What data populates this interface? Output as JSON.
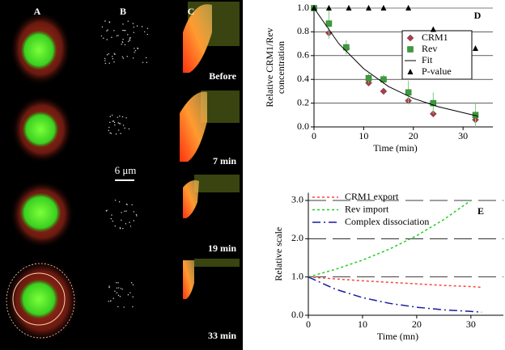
{
  "image_panels": {
    "columns": [
      "A",
      "B",
      "C"
    ],
    "times": [
      "Before",
      "7 min",
      "19 min",
      "33 min"
    ],
    "scale_bar": "6 μm"
  },
  "chart_data": [
    {
      "type": "scatter",
      "panel": "D",
      "ylabel": [
        "Relative CRM1/Rev",
        "concentration"
      ],
      "xlabel": "Time (min)",
      "xlim": [
        0,
        36
      ],
      "xticks": [
        0,
        10,
        20,
        30
      ],
      "ylim": [
        0,
        1.0
      ],
      "yticks": [
        {
          "value": 0,
          "label": "0.0"
        },
        0.2,
        0.4,
        0.6,
        0.8,
        {
          "value": 1,
          "label": "1.0"
        }
      ],
      "grid": "solid",
      "series": [
        {
          "name": "CRM1",
          "color": "#b03a48",
          "marker": "diamond",
          "x": [
            0,
            3,
            6.5,
            11,
            14,
            19,
            24,
            32.5
          ],
          "values": [
            1.0,
            0.79,
            0.66,
            0.37,
            0.3,
            0.22,
            0.11,
            0.06
          ]
        },
        {
          "name": "Rev",
          "color": "#3a9e3a",
          "marker": "square",
          "x": [
            0,
            3,
            6.5,
            11,
            14,
            19,
            24,
            32.5
          ],
          "values": [
            1.0,
            0.87,
            0.67,
            0.41,
            0.4,
            0.29,
            0.2,
            0.1
          ],
          "errors": [
            0,
            0.13,
            0.06,
            0.04,
            0.04,
            0.1,
            0.09,
            0.1
          ]
        },
        {
          "name": "Fit",
          "color": "#000000",
          "marker": "line",
          "x": [
            0,
            5,
            10,
            15,
            20,
            25,
            30,
            33
          ],
          "values": [
            1.0,
            0.7,
            0.49,
            0.34,
            0.24,
            0.17,
            0.12,
            0.09
          ]
        },
        {
          "name": "P-value",
          "color": "#000000",
          "marker": "triangle",
          "x": [
            0,
            3,
            7,
            11,
            14,
            19,
            24,
            32.5
          ],
          "values": [
            1.0,
            1.0,
            1.0,
            1.0,
            1.0,
            1.0,
            0.82,
            0.66
          ]
        }
      ]
    },
    {
      "type": "line",
      "panel": "E",
      "ylabel": [
        "Relative scale"
      ],
      "xlabel": "Time (mn)",
      "xlim": [
        0,
        36
      ],
      "xticks": [
        0,
        10,
        20,
        30
      ],
      "ylim": [
        0,
        3.2
      ],
      "yticks": [
        {
          "value": 0,
          "label": "0.0"
        },
        {
          "value": 1,
          "label": "1.0"
        },
        {
          "value": 2,
          "label": "2.0"
        },
        {
          "value": 3,
          "label": "3.0"
        }
      ],
      "grid": "dashed",
      "series": [
        {
          "name": "CRM1 export",
          "color": "#ff4040",
          "dash": "dotted",
          "x": [
            0,
            5,
            10,
            15,
            20,
            25,
            30,
            32
          ],
          "values": [
            1.0,
            0.95,
            0.9,
            0.86,
            0.82,
            0.78,
            0.75,
            0.73
          ]
        },
        {
          "name": "Rev import",
          "color": "#22cc22",
          "dash": "dotted",
          "x": [
            0,
            5,
            10,
            15,
            20,
            25,
            30
          ],
          "values": [
            1.0,
            1.2,
            1.44,
            1.73,
            2.08,
            2.5,
            3.0
          ]
        },
        {
          "name": "Complex dissociation",
          "color": "#1a1aa0",
          "dash": "dashdot",
          "x": [
            0,
            5,
            10,
            15,
            20,
            25,
            30,
            32
          ],
          "values": [
            1.0,
            0.68,
            0.46,
            0.31,
            0.21,
            0.14,
            0.1,
            0.08
          ]
        }
      ]
    }
  ]
}
